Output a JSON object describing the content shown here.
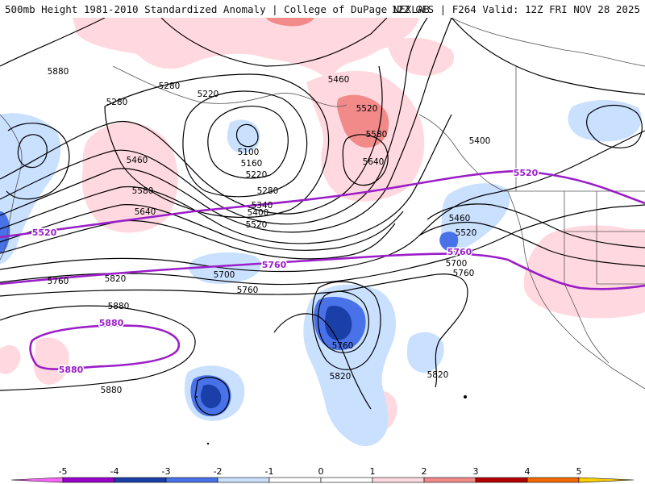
{
  "title": {
    "left": "500mb Height 1981-2010 Standardized Anomaly | College of DuPage NEXLAB",
    "right": "12Z GFS | F264 Valid: 12Z FRI NOV 28 2025"
  },
  "colors": {
    "neg5": "#ff66ff",
    "neg4": "#9a00cc",
    "neg3": "#1b3fa8",
    "neg2": "#4a72e8",
    "neg1": "#c9e0ff",
    "pos1": "#ffd9df",
    "pos2": "#f28a8a",
    "pos3": "#b40000",
    "pos4": "#f26a00",
    "pos5": "#ffd000",
    "contour": "#000000",
    "highlight_contour": "#9b1ec8",
    "coast": "#555555"
  },
  "height_labels": {
    "l5280a": "5280",
    "l5280b": "5280",
    "l5220": "5220",
    "l5160": "5160",
    "l5100": "5100",
    "l5220b": "5220",
    "l5280c": "5280",
    "l5340": "5340",
    "l5400": "5400",
    "l5520b": "5520",
    "l5460a": "5460",
    "l5580a": "5580",
    "l5640a": "5640",
    "l5460b": "5460",
    "l5520c": "5520",
    "l5580b": "5580",
    "l5640b": "5640",
    "l5400b": "5400",
    "l5460c": "5460",
    "l5520d": "5520",
    "l5700a": "5700",
    "l5760a": "5760",
    "l5700b": "5700",
    "l5760b": "5760",
    "l5760c": "5760",
    "l5820a": "5820",
    "l5880a": "5880",
    "l5880b": "5880",
    "l5760d": "5760",
    "l5820b": "5820",
    "l5820c": "5820",
    "l5880c": "5880",
    "l5760e": "5760"
  },
  "highlight_labels": {
    "p5520a": "5520",
    "p5520b": "5520",
    "p5760a": "5760",
    "p5760b": "5760",
    "p5880a": "5880",
    "p5880b": "5880"
  },
  "colorbar": {
    "ticks": [
      "-5",
      "-4",
      "-3",
      "-2",
      "-1",
      "0",
      "1",
      "2",
      "3",
      "4",
      "5"
    ]
  }
}
